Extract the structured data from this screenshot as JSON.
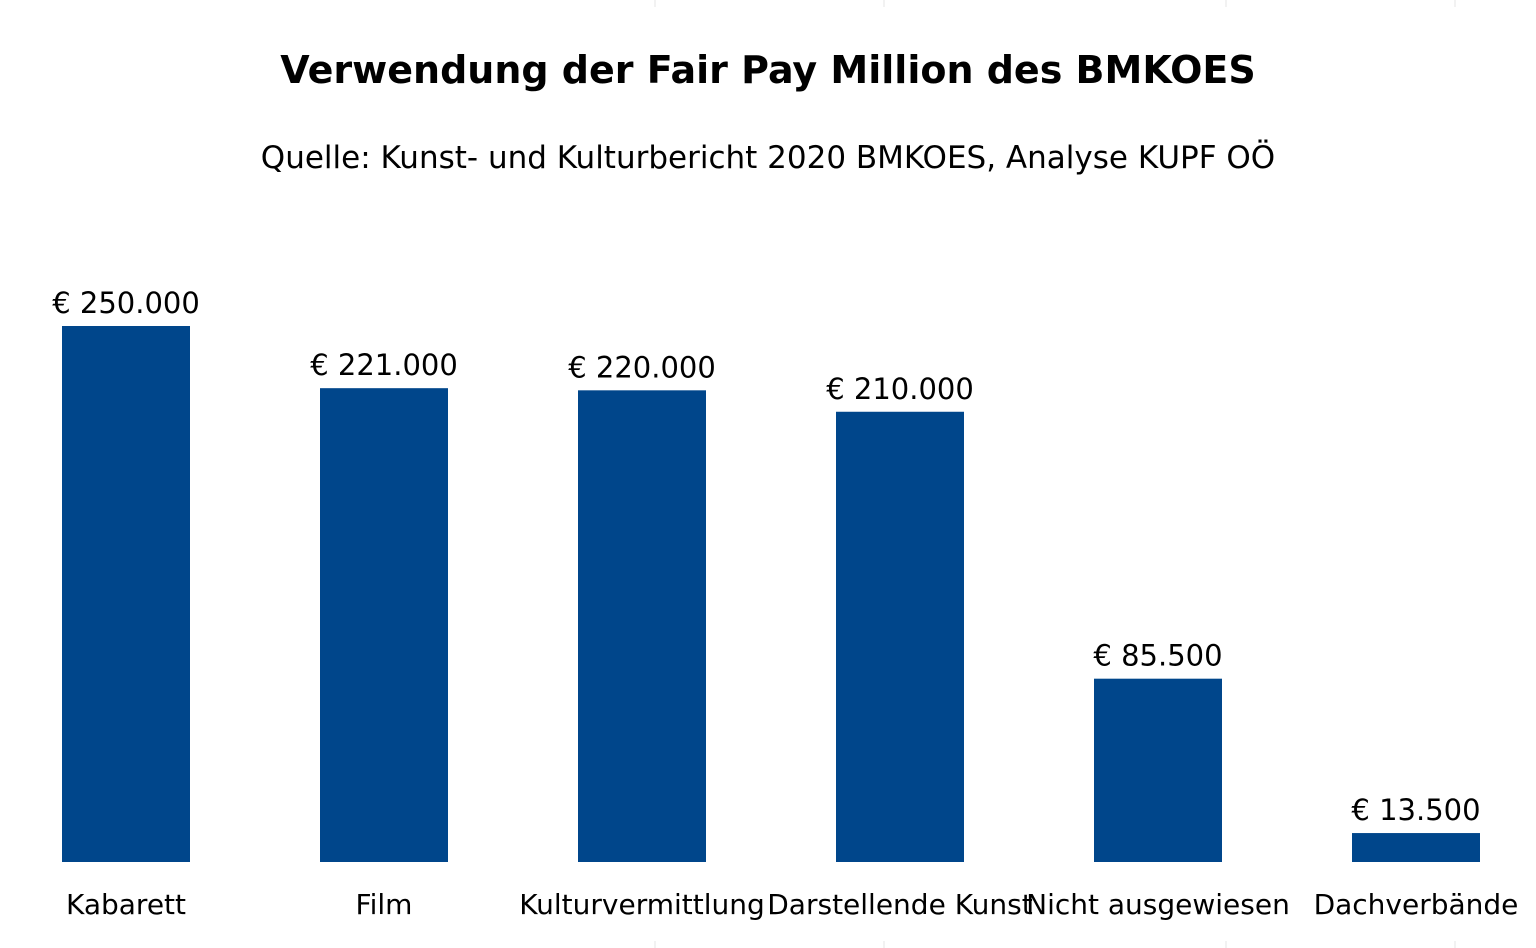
{
  "chart_data": {
    "type": "bar",
    "title": "Verwendung der Fair Pay Million des BMKOES",
    "subtitle": "Quelle: Kunst- und Kulturbericht 2020 BMKOES, Analyse KUPF OÖ",
    "categories": [
      "Kabarett",
      "Film",
      "Kulturvermittlung",
      "Darstellende Kunst",
      "Nicht ausgewiesen",
      "Dachverbände"
    ],
    "values": [
      250000,
      221000,
      220000,
      210000,
      85500,
      13500
    ],
    "data_labels": [
      "€ 250.000",
      "€ 221.000",
      "€ 220.000",
      "€ 210.000",
      "€ 85.500",
      "€ 13.500"
    ],
    "xlabel": "",
    "ylabel": "",
    "ylim": [
      0,
      250000
    ],
    "grid": false,
    "legend": "none",
    "bar_color": "#00468B"
  }
}
